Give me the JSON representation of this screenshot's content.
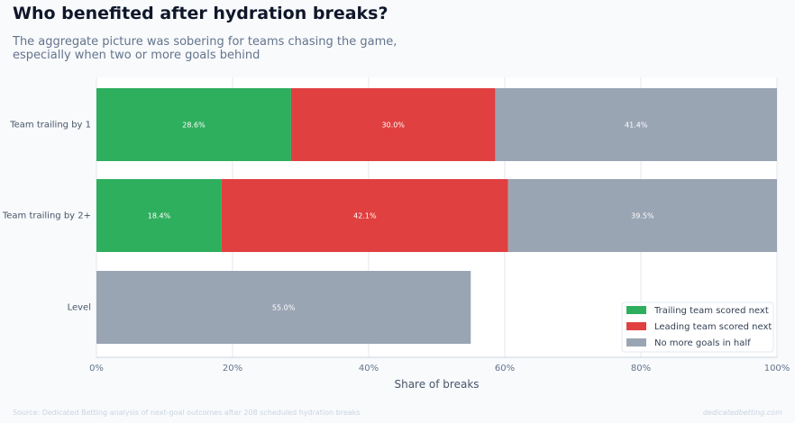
{
  "title": "Who benefited after hydration breaks?",
  "subtitle": "The aggregate picture was sobering for teams chasing the game, especially when two or more goals behind",
  "source": "Source: Dedicated Betting analysis of next-goal outcomes after 208 scheduled hydration breaks",
  "brand": "dedicatedbetting.com",
  "chart_data": {
    "type": "bar",
    "orientation": "horizontal",
    "stacked": true,
    "categories": [
      "Team trailing by 1",
      "Team trailing by 2+",
      "Level"
    ],
    "series": [
      {
        "name": "Trailing team scored next",
        "color": "#2eaf5d",
        "values": [
          28.6,
          18.4,
          null
        ],
        "labels": [
          "28.6%",
          "18.4%",
          ""
        ]
      },
      {
        "name": "Leading team scored next",
        "color": "#e04040",
        "values": [
          30.0,
          42.1,
          null
        ],
        "labels": [
          "30.0%",
          "42.1%",
          ""
        ]
      },
      {
        "name": "No more goals in half",
        "color": "#9aa5b4",
        "values": [
          41.4,
          39.5,
          55.0
        ],
        "labels": [
          "41.4%",
          "39.5%",
          "55.0%"
        ]
      }
    ],
    "xlabel": "Share of breaks",
    "ylabel": "",
    "xlim": [
      0,
      100
    ],
    "xticks": [
      "0%",
      "20%",
      "40%",
      "60%",
      "80%",
      "100%"
    ],
    "grid": true,
    "legend_position": "bottom-right"
  }
}
